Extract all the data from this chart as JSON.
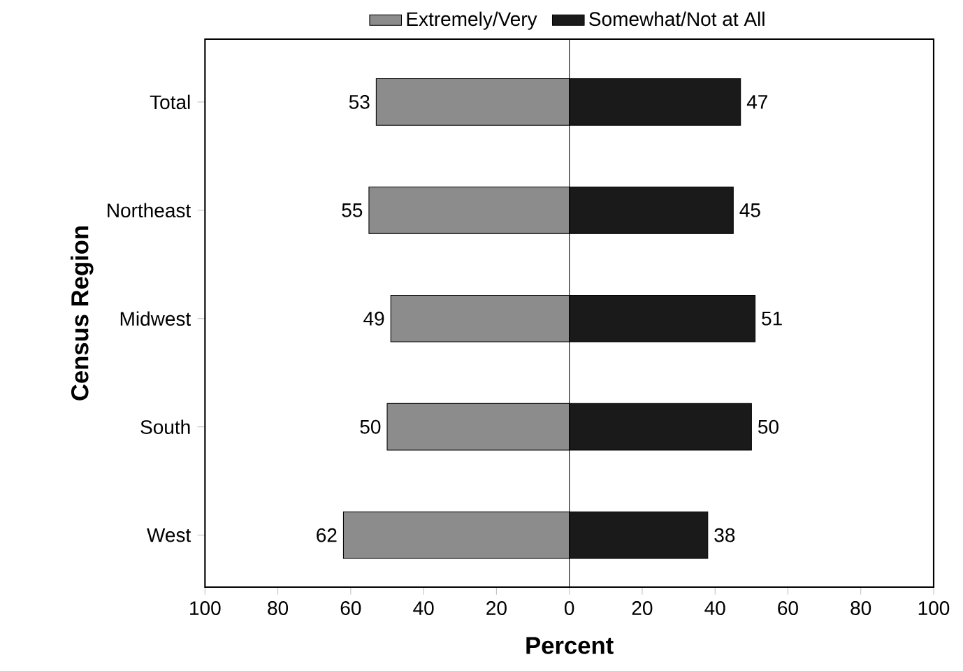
{
  "chart_data": {
    "type": "bar",
    "orientation": "horizontal",
    "stacked": true,
    "xlabel": "Percent",
    "ylabel": "Census Region",
    "categories": [
      "Total",
      "Northeast",
      "Midwest",
      "South",
      "West"
    ],
    "series": [
      {
        "name": "Extremely/Very",
        "color": "#8c8c8c",
        "values": [
          53,
          55,
          49,
          50,
          62
        ],
        "base": [
          -53,
          -55,
          -49,
          -50,
          -62
        ],
        "value_labels": [
          "53",
          "55",
          "49",
          "50",
          "62"
        ]
      },
      {
        "name": "Somewhat/Not at All",
        "color": "#1a1a1a",
        "values": [
          47,
          45,
          51,
          50,
          38
        ],
        "value_labels": [
          "47",
          "45",
          "51",
          "50",
          "38"
        ]
      }
    ],
    "xlim": [
      -100,
      100
    ],
    "xticks": [
      {
        "value": -100,
        "label": "100"
      },
      {
        "value": -80,
        "label": "80"
      },
      {
        "value": -60,
        "label": "60"
      },
      {
        "value": -40,
        "label": "40"
      },
      {
        "value": -20,
        "label": "20"
      },
      0,
      20,
      40,
      60,
      80,
      100
    ],
    "legend": "top"
  }
}
